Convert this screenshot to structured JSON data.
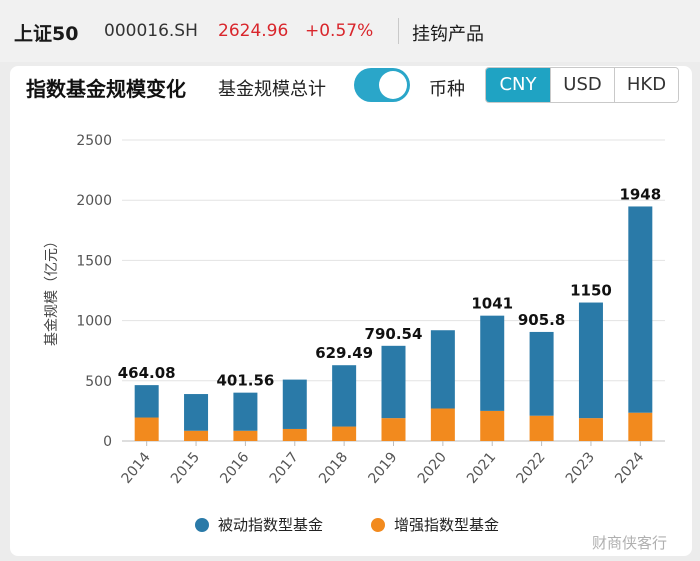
{
  "header": {
    "index_name": "上证50",
    "index_code": "000016.SH",
    "price": "2624.96",
    "change": "+0.57%",
    "link": "挂钩产品"
  },
  "card": {
    "title": "指数基金规模变化",
    "toggle_label": "基金规模总计",
    "toggle_on": true,
    "currency_label": "币种",
    "currencies": [
      "CNY",
      "USD",
      "HKD"
    ],
    "active_currency": "CNY"
  },
  "colors": {
    "passive": "#2a7aa8",
    "enhanced": "#f28a1e",
    "accent": "#1fa3c3",
    "price_up": "#d9262c"
  },
  "chart_data": {
    "type": "bar",
    "stacked": true,
    "ylabel": "基金规模（亿元）",
    "ylim": [
      0,
      2500
    ],
    "yticks": [
      0,
      500,
      1000,
      1500,
      2000,
      2500
    ],
    "grid": true,
    "categories": [
      "2014",
      "2015",
      "2016",
      "2017",
      "2018",
      "2019",
      "2020",
      "2021",
      "2022",
      "2023",
      "2024"
    ],
    "series": [
      {
        "name": "增强指数型基金",
        "values": [
          195,
          85,
          85,
          100,
          120,
          190,
          270,
          250,
          210,
          190,
          235
        ]
      },
      {
        "name": "被动指数型基金",
        "values": [
          269.08,
          305,
          316.56,
          410,
          509.49,
          600.54,
          650,
          791,
          695.8,
          960,
          1713
        ]
      }
    ],
    "totals": [
      464.08,
      390,
      401.56,
      510,
      629.49,
      790.54,
      920,
      1041,
      905.8,
      1150,
      1948
    ],
    "data_labels": [
      "464.08",
      "",
      "401.56",
      "",
      "629.49",
      "790.54",
      "",
      "1041",
      "905.8",
      "1150",
      "1948"
    ],
    "legend": [
      "被动指数型基金",
      "增强指数型基金"
    ],
    "legend_position": "bottom"
  },
  "watermark": "财商侠客行"
}
